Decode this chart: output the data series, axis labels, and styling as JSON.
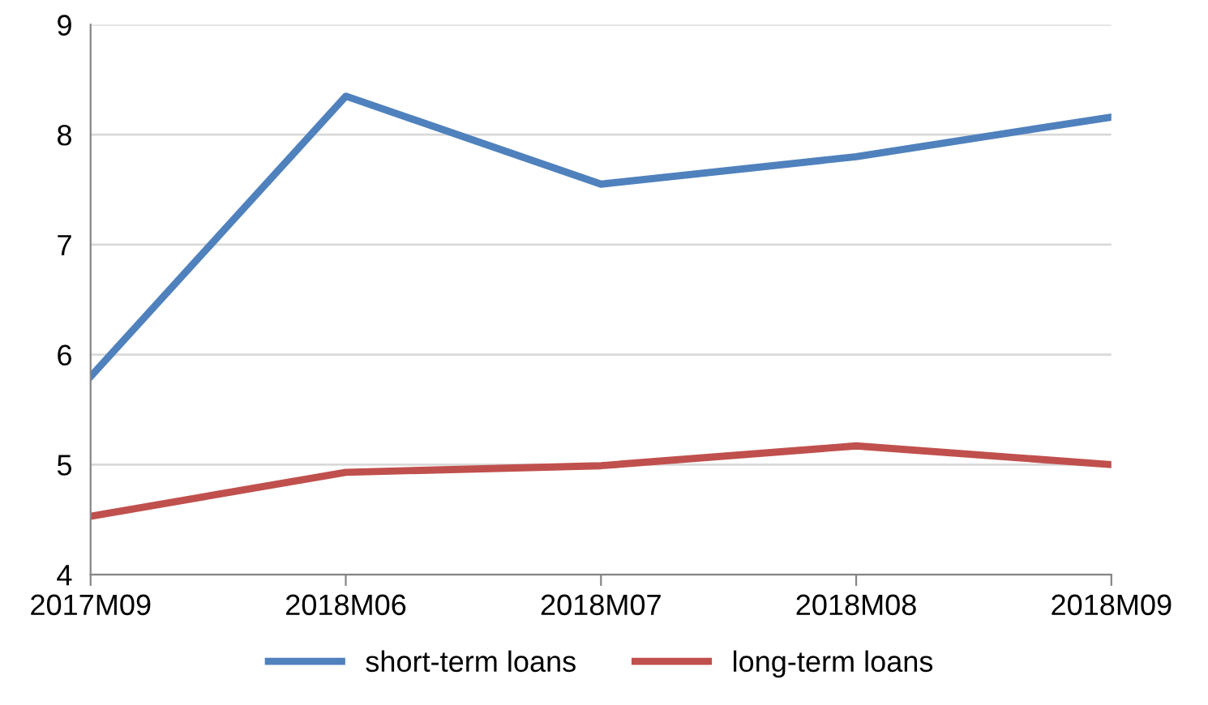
{
  "chart_data": {
    "type": "line",
    "categories": [
      "2017M09",
      "2018M06",
      "2018M07",
      "2018M08",
      "2018M09"
    ],
    "series": [
      {
        "name": "short-term loans",
        "color": "#4f81bd",
        "values": [
          5.8,
          8.35,
          7.55,
          7.8,
          8.16
        ]
      },
      {
        "name": "long-term loans",
        "color": "#c0504d",
        "values": [
          4.53,
          4.93,
          4.99,
          5.17,
          5.0
        ]
      }
    ],
    "ylim": [
      4,
      9
    ],
    "yticks": [
      4,
      5,
      6,
      7,
      8,
      9
    ],
    "grid": "y",
    "legend": "bottom",
    "marker": "none",
    "line_style": "solid"
  }
}
